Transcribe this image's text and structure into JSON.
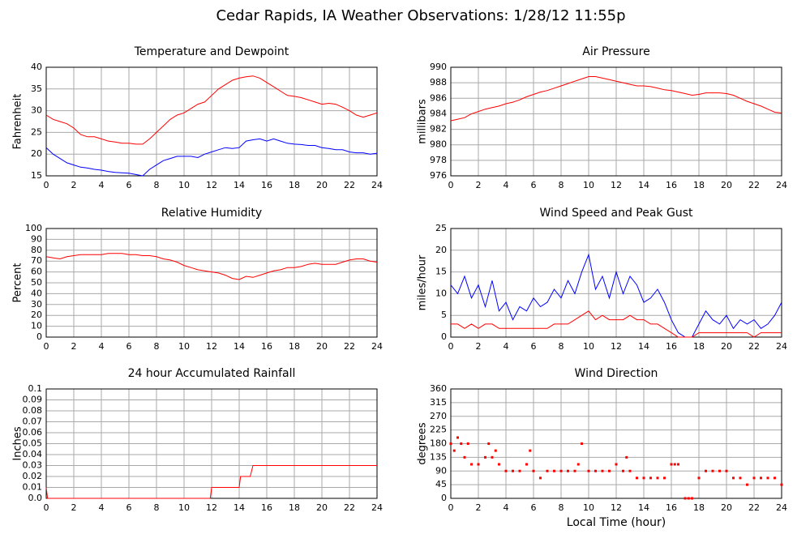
{
  "title": "Cedar Rapids, IA Weather Observations: 1/28/12 11:55p",
  "chart_data": [
    {
      "type": "line",
      "title": "Temperature and Dewpoint",
      "ylabel": "Fahrenheit",
      "grid": true,
      "xlim": [
        0,
        24
      ],
      "xticks": [
        0,
        2,
        4,
        6,
        8,
        10,
        12,
        14,
        16,
        18,
        20,
        22,
        24
      ],
      "ylim": [
        15,
        40
      ],
      "yticks": [
        15,
        20,
        25,
        30,
        35,
        40
      ],
      "x": [
        0,
        0.5,
        1,
        1.5,
        2,
        2.5,
        3,
        3.5,
        4,
        4.5,
        5,
        5.5,
        6,
        6.5,
        7,
        7.5,
        8,
        8.5,
        9,
        9.5,
        10,
        10.5,
        11,
        11.5,
        12,
        12.5,
        13,
        13.5,
        14,
        14.5,
        15,
        15.5,
        16,
        16.5,
        17,
        17.5,
        18,
        18.5,
        19,
        19.5,
        20,
        20.5,
        21,
        21.5,
        22,
        22.5,
        23,
        23.5,
        24
      ],
      "series": [
        {
          "color": "#ff0000",
          "values": [
            29,
            28,
            27.5,
            27,
            26,
            24.5,
            24,
            24,
            23.5,
            23,
            22.8,
            22.5,
            22.5,
            22.3,
            22.3,
            23.5,
            25,
            26.5,
            28,
            29,
            29.5,
            30.5,
            31.5,
            32,
            33.5,
            35,
            36,
            37,
            37.5,
            37.8,
            38,
            37.5,
            36.5,
            35.5,
            34.5,
            33.5,
            33.3,
            33,
            32.5,
            32,
            31.5,
            31.7,
            31.5,
            30.8,
            30,
            29,
            28.5,
            29,
            29.5
          ]
        },
        {
          "color": "#0000ff",
          "values": [
            21.5,
            20,
            19,
            18,
            17.5,
            17,
            16.8,
            16.5,
            16.3,
            16,
            15.8,
            15.7,
            15.6,
            15.3,
            15,
            16.5,
            17.5,
            18.5,
            19,
            19.5,
            19.5,
            19.5,
            19.2,
            20,
            20.5,
            21,
            21.5,
            21.3,
            21.5,
            23,
            23.3,
            23.5,
            23,
            23.5,
            23,
            22.5,
            22.3,
            22.2,
            22,
            22,
            21.5,
            21.3,
            21,
            21,
            20.5,
            20.3,
            20.3,
            20,
            20.2
          ]
        }
      ]
    },
    {
      "type": "line",
      "title": "Air Pressure",
      "ylabel": "millibars",
      "grid": true,
      "xlim": [
        0,
        24
      ],
      "xticks": [
        0,
        2,
        4,
        6,
        8,
        10,
        12,
        14,
        16,
        18,
        20,
        22,
        24
      ],
      "ylim": [
        976,
        990
      ],
      "yticks": [
        976,
        978,
        980,
        982,
        984,
        986,
        988,
        990
      ],
      "x": [
        0,
        0.5,
        1,
        1.5,
        2,
        2.5,
        3,
        3.5,
        4,
        4.5,
        5,
        5.5,
        6,
        6.5,
        7,
        7.5,
        8,
        8.5,
        9,
        9.5,
        10,
        10.5,
        11,
        11.5,
        12,
        12.5,
        13,
        13.5,
        14,
        14.5,
        15,
        15.5,
        16,
        16.5,
        17,
        17.5,
        18,
        18.5,
        19,
        19.5,
        20,
        20.5,
        21,
        21.5,
        22,
        22.5,
        23,
        23.5,
        24
      ],
      "series": [
        {
          "color": "#ff0000",
          "values": [
            983.1,
            983.3,
            983.5,
            984,
            984.3,
            984.6,
            984.8,
            985,
            985.3,
            985.5,
            985.8,
            986.2,
            986.5,
            986.8,
            987,
            987.3,
            987.6,
            987.9,
            988.2,
            988.5,
            988.8,
            988.8,
            988.6,
            988.4,
            988.2,
            988,
            987.8,
            987.6,
            987.6,
            987.5,
            987.3,
            987.1,
            987,
            986.8,
            986.6,
            986.4,
            986.5,
            986.7,
            986.7,
            986.7,
            986.6,
            986.4,
            986,
            985.6,
            985.3,
            985,
            984.6,
            984.2,
            984.1
          ]
        }
      ]
    },
    {
      "type": "line",
      "title": "Relative Humidity",
      "ylabel": "Percent",
      "grid": true,
      "xlim": [
        0,
        24
      ],
      "xticks": [
        0,
        2,
        4,
        6,
        8,
        10,
        12,
        14,
        16,
        18,
        20,
        22,
        24
      ],
      "ylim": [
        0,
        100
      ],
      "yticks": [
        0,
        10,
        20,
        30,
        40,
        50,
        60,
        70,
        80,
        90,
        100
      ],
      "x": [
        0,
        0.5,
        1,
        1.5,
        2,
        2.5,
        3,
        3.5,
        4,
        4.5,
        5,
        5.5,
        6,
        6.5,
        7,
        7.5,
        8,
        8.5,
        9,
        9.5,
        10,
        10.5,
        11,
        11.5,
        12,
        12.5,
        13,
        13.5,
        14,
        14.5,
        15,
        15.5,
        16,
        16.5,
        17,
        17.5,
        18,
        18.5,
        19,
        19.5,
        20,
        20.5,
        21,
        21.5,
        22,
        22.5,
        23,
        23.5,
        24
      ],
      "series": [
        {
          "color": "#ff0000",
          "values": [
            74,
            73,
            72,
            74,
            75,
            76,
            76,
            76,
            76,
            77,
            77,
            77,
            76,
            76,
            75,
            75,
            74,
            72,
            71,
            69,
            66,
            64,
            62,
            61,
            60,
            59,
            57,
            54,
            53,
            56,
            55,
            57,
            59,
            61,
            62,
            64,
            64,
            65,
            67,
            68,
            67,
            67,
            67,
            69,
            71,
            72,
            72,
            70,
            69
          ]
        }
      ]
    },
    {
      "type": "line",
      "title": "Wind Speed and Peak Gust",
      "ylabel": "miles/hour",
      "grid": true,
      "xlim": [
        0,
        24
      ],
      "xticks": [
        0,
        2,
        4,
        6,
        8,
        10,
        12,
        14,
        16,
        18,
        20,
        22,
        24
      ],
      "ylim": [
        0,
        25
      ],
      "yticks": [
        0,
        5,
        10,
        15,
        20,
        25
      ],
      "x": [
        0,
        0.5,
        1,
        1.5,
        2,
        2.5,
        3,
        3.5,
        4,
        4.5,
        5,
        5.5,
        6,
        6.5,
        7,
        7.5,
        8,
        8.5,
        9,
        9.5,
        10,
        10.5,
        11,
        11.5,
        12,
        12.5,
        13,
        13.5,
        14,
        14.5,
        15,
        15.5,
        16,
        16.5,
        17,
        17.5,
        18,
        18.5,
        19,
        19.5,
        20,
        20.5,
        21,
        21.5,
        22,
        22.5,
        23,
        23.5,
        24
      ],
      "series": [
        {
          "color": "#0000ff",
          "values": [
            12,
            10,
            14,
            9,
            12,
            7,
            13,
            6,
            8,
            4,
            7,
            6,
            9,
            7,
            8,
            11,
            9,
            13,
            10,
            15,
            19,
            11,
            14,
            9,
            15,
            10,
            14,
            12,
            8,
            9,
            11,
            8,
            4,
            1,
            0,
            0,
            3,
            6,
            4,
            3,
            5,
            2,
            4,
            3,
            4,
            2,
            3,
            5,
            8
          ]
        },
        {
          "color": "#ff0000",
          "values": [
            3,
            3,
            2,
            3,
            2,
            3,
            3,
            2,
            2,
            2,
            2,
            2,
            2,
            2,
            2,
            3,
            3,
            3,
            4,
            5,
            6,
            4,
            5,
            4,
            4,
            4,
            5,
            4,
            4,
            3,
            3,
            2,
            1,
            0,
            0,
            0,
            1,
            1,
            1,
            1,
            1,
            1,
            1,
            1,
            0,
            1,
            1,
            1,
            1
          ]
        }
      ]
    },
    {
      "type": "line",
      "title": "24 hour Accumulated Rainfall",
      "ylabel": "Inches",
      "grid": true,
      "xlim": [
        0,
        24
      ],
      "xticks": [
        0,
        2,
        4,
        6,
        8,
        10,
        12,
        14,
        16,
        18,
        20,
        22,
        24
      ],
      "ylim": [
        0,
        0.1
      ],
      "yticks": [
        {
          "value": 0,
          "label": "0.0"
        },
        0.01,
        0.02,
        0.03,
        0.04,
        0.05,
        0.06,
        0.07,
        0.08,
        0.09,
        0.1
      ],
      "x": [
        0,
        0.1,
        11.9,
        12,
        14,
        14.1,
        14.8,
        15,
        24
      ],
      "series": [
        {
          "color": "#ff0000",
          "values": [
            0.01,
            0,
            0,
            0.01,
            0.01,
            0.02,
            0.02,
            0.03,
            0.03
          ]
        }
      ]
    },
    {
      "type": "scatter",
      "title": "Wind Direction",
      "ylabel": "degrees",
      "xlabel": "Local Time (hour)",
      "grid": true,
      "xlim": [
        0,
        24
      ],
      "xticks": [
        0,
        2,
        4,
        6,
        8,
        10,
        12,
        14,
        16,
        18,
        20,
        22,
        24
      ],
      "ylim": [
        0,
        360
      ],
      "yticks": [
        0,
        45,
        90,
        135,
        180,
        225,
        270,
        315,
        360
      ],
      "x": [
        0,
        0.25,
        0.5,
        0.75,
        1,
        1.25,
        1.5,
        2,
        2.5,
        2.75,
        3,
        3.25,
        3.5,
        4,
        4.5,
        5,
        5.5,
        5.75,
        6,
        6.5,
        7,
        7.5,
        8,
        8.5,
        9,
        9.25,
        9.5,
        10,
        10.5,
        11,
        11.5,
        12,
        12.5,
        12.75,
        13,
        13.5,
        14,
        14.5,
        15,
        15.5,
        16,
        16.25,
        16.5,
        17,
        17.25,
        17.5,
        18,
        18.5,
        19,
        19.5,
        20,
        20.5,
        21,
        21.5,
        22,
        22.5,
        23,
        23.5,
        24
      ],
      "series": [
        {
          "color": "#ff0000",
          "values": [
            180,
            157,
            200,
            180,
            135,
            180,
            112,
            112,
            135,
            180,
            135,
            157,
            112,
            90,
            90,
            90,
            112,
            157,
            90,
            67,
            90,
            90,
            90,
            90,
            90,
            112,
            180,
            90,
            90,
            90,
            90,
            112,
            90,
            135,
            90,
            67,
            67,
            67,
            67,
            67,
            112,
            112,
            112,
            0,
            0,
            0,
            67,
            90,
            90,
            90,
            90,
            67,
            67,
            45,
            67,
            67,
            67,
            67,
            45
          ]
        }
      ]
    }
  ]
}
